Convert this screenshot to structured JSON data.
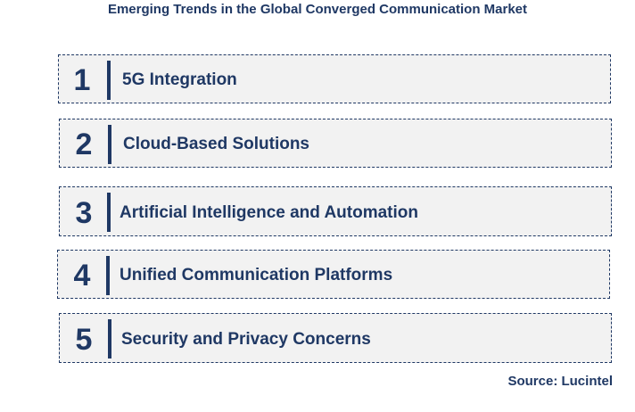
{
  "title": "Emerging Trends in the Global Converged Communication Market",
  "items": [
    {
      "number": "1",
      "label": "5G Integration"
    },
    {
      "number": "2",
      "label": "Cloud-Based Solutions"
    },
    {
      "number": "3",
      "label": "Artificial Intelligence and Automation"
    },
    {
      "number": "4",
      "label": "Unified Communication Platforms"
    },
    {
      "number": "5",
      "label": "Security and Privacy Concerns"
    }
  ],
  "source": "Source: Lucintel",
  "colors": {
    "primary": "#1f3864",
    "box_fill": "#f2f2f2"
  }
}
